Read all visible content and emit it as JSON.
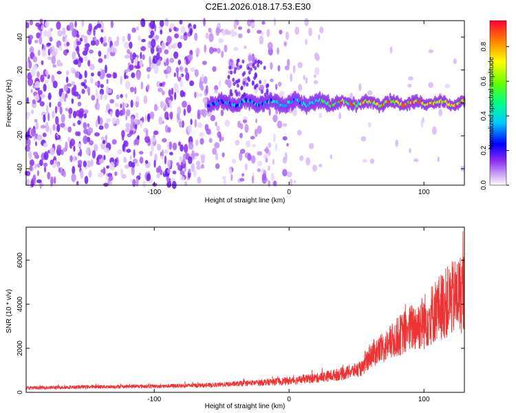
{
  "title": "C2E1.2026.018.17.53.E30",
  "colors": {
    "spectrogram_low": "#d8b8f8",
    "spectrogram_mid": "#6a1ff0",
    "snr_line": "#ee3333"
  },
  "chart_data": [
    {
      "type": "heatmap",
      "xlabel": "Height of straight line (km)",
      "ylabel": "Frequency (Hz)",
      "xlim": [
        -195,
        130
      ],
      "ylim": [
        -50,
        50
      ],
      "x_ticks": [
        -100,
        0,
        100
      ],
      "y_ticks": [
        -40,
        -20,
        0,
        20,
        40
      ],
      "colorbar": {
        "label": "Normalized spectral amplitude",
        "range": [
          0.0,
          0.95
        ],
        "ticks": [
          0.0,
          0.2,
          0.4,
          0.6,
          0.8
        ],
        "colormap": "hsv_reversed_white_to_red"
      },
      "notes": {
        "noise_region_x": [
          -195,
          20
        ],
        "signal_line_frequency_hz": 0,
        "signal_start_x": -60,
        "strongest_signal_x": [
          30,
          130
        ]
      }
    },
    {
      "type": "line",
      "xlabel": "Height of straight line (km)",
      "ylabel": "SNR (10 * v/v)",
      "xlim": [
        -195,
        130
      ],
      "ylim": [
        0,
        7500
      ],
      "x_ticks": [
        -100,
        0,
        100
      ],
      "y_ticks": [
        0,
        2000,
        4000,
        6000
      ],
      "series": [
        {
          "color": "#ee3333",
          "x": [
            -195,
            -150,
            -100,
            -60,
            -40,
            -20,
            0,
            20,
            40,
            55,
            60,
            70,
            80,
            90,
            100,
            110,
            120,
            130
          ],
          "y": [
            200,
            250,
            280,
            320,
            380,
            450,
            520,
            650,
            850,
            1100,
            1700,
            2000,
            2500,
            2900,
            3200,
            3800,
            4200,
            4600
          ],
          "spread": [
            80,
            80,
            90,
            100,
            120,
            150,
            180,
            220,
            300,
            350,
            600,
            700,
            900,
            1100,
            1300,
            1500,
            1700,
            1900
          ]
        }
      ]
    }
  ]
}
